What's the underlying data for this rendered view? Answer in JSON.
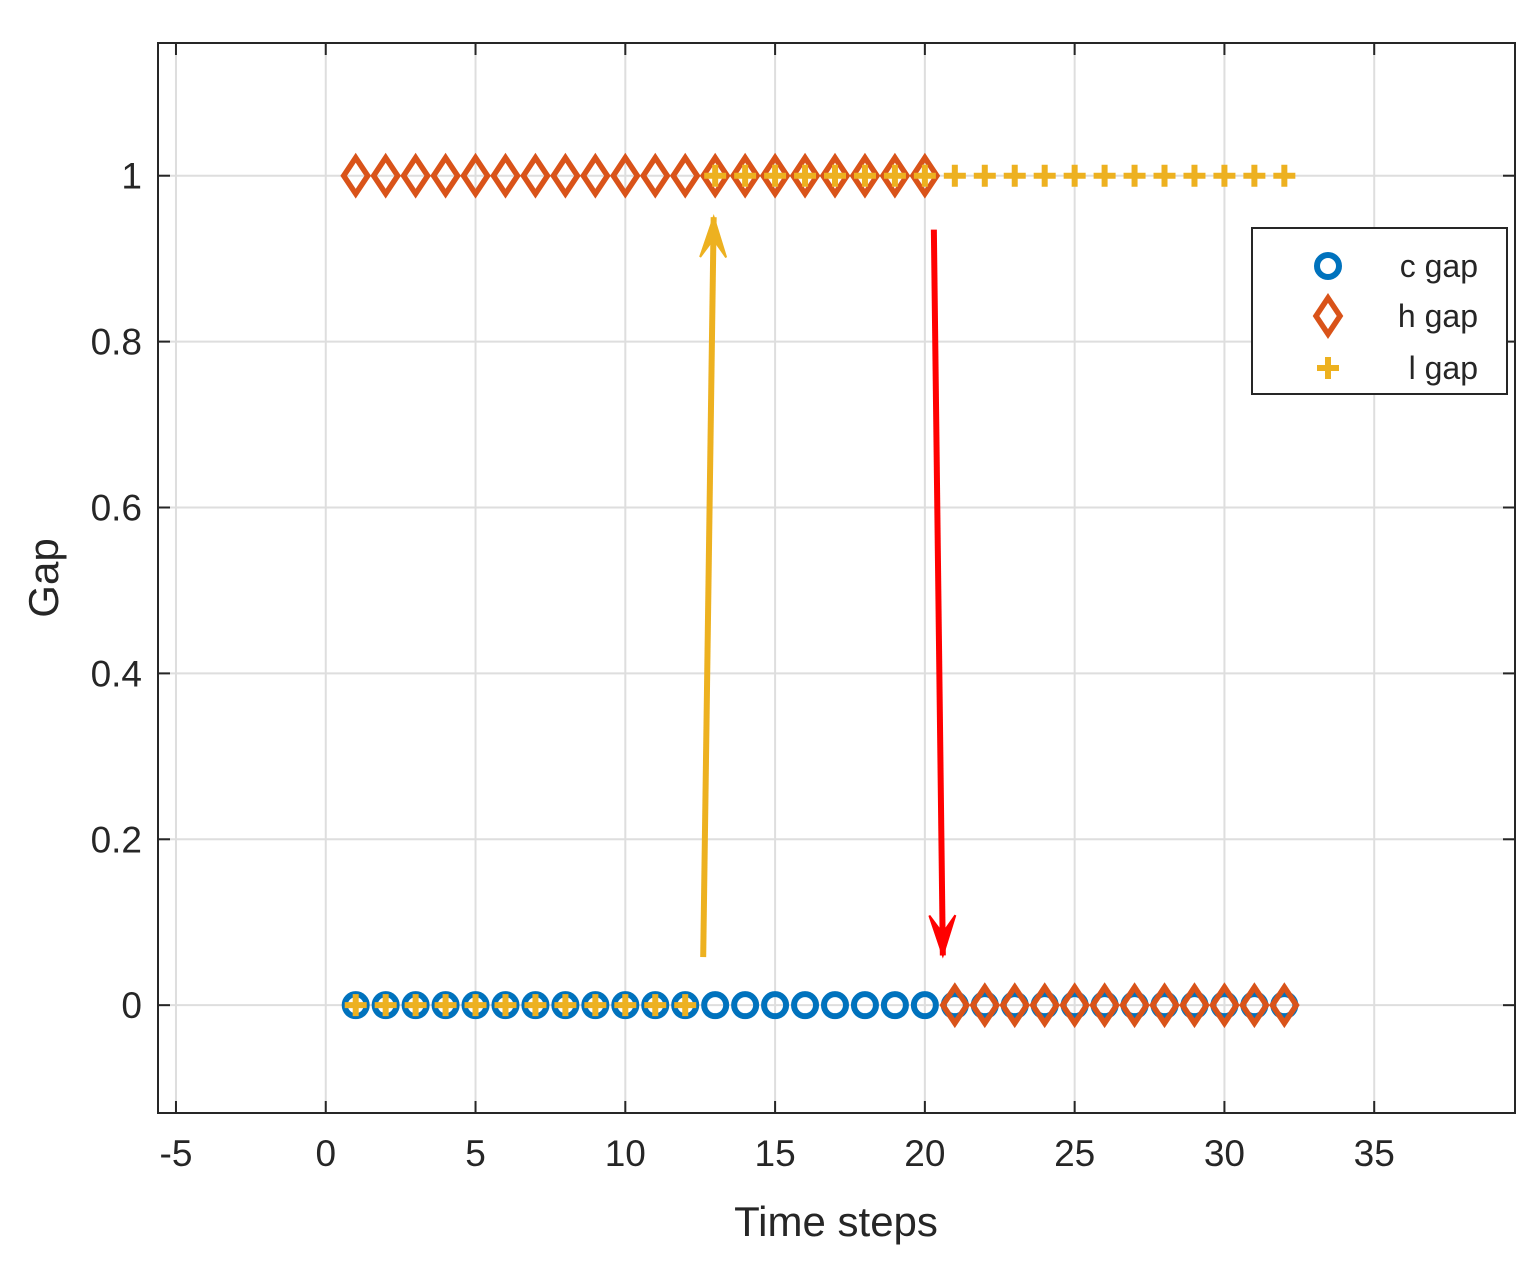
{
  "chart_data": {
    "type": "scatter",
    "title": "",
    "xlabel": "Time steps",
    "ylabel": "Gap",
    "xlim": [
      -5.6,
      39.7
    ],
    "ylim": [
      -0.13,
      1.16
    ],
    "xticks": [
      -5,
      0,
      5,
      10,
      15,
      20,
      25,
      30,
      35
    ],
    "xtick_labels": [
      "-5",
      "0",
      "5",
      "10",
      "15",
      "20",
      "25",
      "30",
      "35"
    ],
    "yticks": [
      0,
      0.2,
      0.4,
      0.6,
      0.8,
      1
    ],
    "ytick_labels": [
      "0",
      "0.2",
      "0.4",
      "0.6",
      "0.8",
      "1"
    ],
    "grid": true,
    "legend_position": "top-right",
    "series": [
      {
        "name": "c gap",
        "marker": "circle",
        "color": "#0072BD",
        "x": [
          1,
          2,
          3,
          4,
          5,
          6,
          7,
          8,
          9,
          10,
          11,
          12,
          13,
          14,
          15,
          16,
          17,
          18,
          19,
          20,
          21,
          22,
          23,
          24,
          25,
          26,
          27,
          28,
          29,
          30,
          31,
          32
        ],
        "y": [
          0,
          0,
          0,
          0,
          0,
          0,
          0,
          0,
          0,
          0,
          0,
          0,
          0,
          0,
          0,
          0,
          0,
          0,
          0,
          0,
          0,
          0,
          0,
          0,
          0,
          0,
          0,
          0,
          0,
          0,
          0,
          0
        ]
      },
      {
        "name": "h gap",
        "marker": "diamond",
        "color": "#D95319",
        "x": [
          1,
          2,
          3,
          4,
          5,
          6,
          7,
          8,
          9,
          10,
          11,
          12,
          13,
          14,
          15,
          16,
          17,
          18,
          19,
          20,
          21,
          22,
          23,
          24,
          25,
          26,
          27,
          28,
          29,
          30,
          31,
          32
        ],
        "y": [
          1,
          1,
          1,
          1,
          1,
          1,
          1,
          1,
          1,
          1,
          1,
          1,
          1,
          1,
          1,
          1,
          1,
          1,
          1,
          1,
          0,
          0,
          0,
          0,
          0,
          0,
          0,
          0,
          0,
          0,
          0,
          0
        ]
      },
      {
        "name": "l gap",
        "marker": "plus",
        "color": "#EDB120",
        "x": [
          1,
          2,
          3,
          4,
          5,
          6,
          7,
          8,
          9,
          10,
          11,
          12,
          13,
          14,
          15,
          16,
          17,
          18,
          19,
          20,
          21,
          22,
          23,
          24,
          25,
          26,
          27,
          28,
          29,
          30,
          31,
          32
        ],
        "y": [
          0,
          0,
          0,
          0,
          0,
          0,
          0,
          0,
          0,
          0,
          0,
          0,
          1,
          1,
          1,
          1,
          1,
          1,
          1,
          1,
          1,
          1,
          1,
          1,
          1,
          1,
          1,
          1,
          1,
          1,
          1,
          1
        ]
      }
    ],
    "annotations": [
      {
        "type": "arrow",
        "color": "#EDB120",
        "from": [
          12.6,
          0.058
        ],
        "to": [
          12.95,
          0.95
        ]
      },
      {
        "type": "arrow",
        "color": "#FF0000",
        "from": [
          20.3,
          0.935
        ],
        "to": [
          20.6,
          0.06
        ]
      }
    ]
  }
}
